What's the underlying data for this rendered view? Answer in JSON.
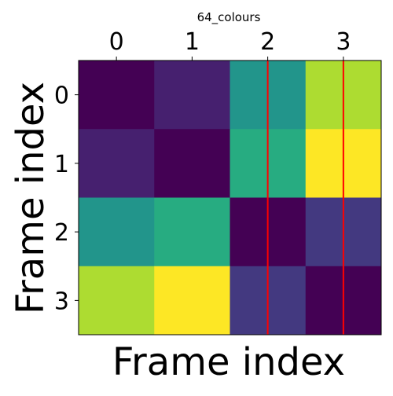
{
  "chart_data": {
    "type": "heatmap",
    "title": "64_colours",
    "xlabel": "Frame index",
    "ylabel": "Frame index",
    "x_ticks": [
      "0",
      "1",
      "2",
      "3"
    ],
    "y_ticks": [
      "0",
      "1",
      "2",
      "3"
    ],
    "x_axis_position": "top",
    "colormap": "viridis",
    "vmin": 0,
    "vmax": 1,
    "values": [
      [
        0.0,
        0.09,
        0.52,
        0.88
      ],
      [
        0.09,
        0.0,
        0.62,
        1.0
      ],
      [
        0.52,
        0.62,
        0.0,
        0.17
      ],
      [
        0.88,
        1.0,
        0.17,
        0.0
      ]
    ],
    "vertical_lines": {
      "x": [
        2,
        3
      ],
      "color": "#ff0000"
    },
    "grid": false,
    "legend": "none"
  }
}
